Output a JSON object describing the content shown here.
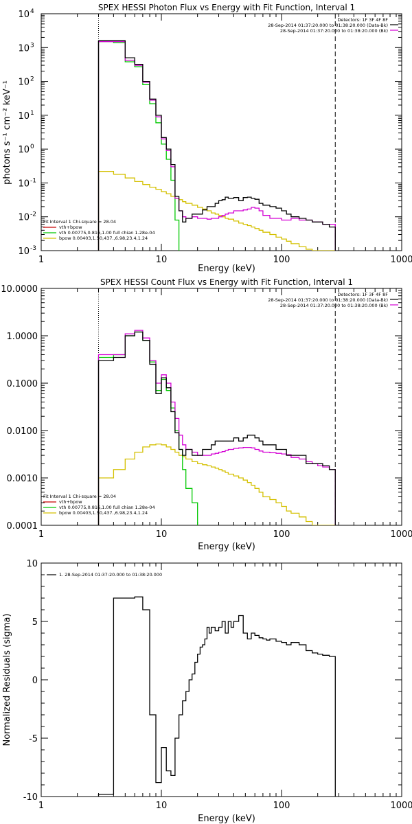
{
  "colors": {
    "axis": "#000000",
    "data": "#000000",
    "vth_bpow": "#d400d4",
    "vth": "#00c800",
    "bpow": "#d4c000",
    "vth_bpow_legend": "#c80000"
  },
  "chart_data": [
    {
      "type": "line",
      "title": "SPEX HESSI Photon Flux vs Energy with Fit Function, Interval 1",
      "xlabel": "Energy (keV)",
      "ylabel": "photons s⁻¹ cm⁻² keV⁻¹",
      "xscale": "log",
      "yscale": "log",
      "xlim": [
        1,
        1000
      ],
      "ylim": [
        0.001,
        10000
      ],
      "x_ticks": [
        {
          "v": 1,
          "label": "1"
        },
        {
          "v": 10,
          "label": "10"
        },
        {
          "v": 100,
          "label": "100"
        },
        {
          "v": 1000,
          "label": "1000"
        }
      ],
      "y_ticks": [
        {
          "v": 0.001,
          "label": "10",
          "exp": "-3"
        },
        {
          "v": 0.01,
          "label": "10",
          "exp": "-2"
        },
        {
          "v": 0.1,
          "label": "10",
          "exp": "-1"
        },
        {
          "v": 1,
          "label": "10",
          "exp": "0"
        },
        {
          "v": 10,
          "label": "10",
          "exp": "1"
        },
        {
          "v": 100,
          "label": "10",
          "exp": "2"
        },
        {
          "v": 1000,
          "label": "10",
          "exp": "3"
        },
        {
          "v": 10000,
          "label": "10",
          "exp": "4"
        }
      ],
      "vlines": [
        {
          "x": 3,
          "style": "dotted"
        },
        {
          "x": 280,
          "style": "dashed"
        }
      ],
      "header_lines": [
        "Detectors: 1F 3F 4F 8F",
        "28-Sep-2014 01:37:20.000 to 01:38:20.000 (Data-Bk)",
        "28-Sep-2014 01:37:20.000 to 01:38:20.000 (Bk)"
      ],
      "legend_lines": [
        "Fit Interval  1     Chi-square = 28.04",
        "vth+bpow",
        "vth 0.00775,0.816,1.00   full chian 1.28e-04",
        "bpow 0.00403,1.50,437.,6.98,23.4,1.24"
      ],
      "series": [
        {
          "name": "data",
          "color_key": "data",
          "x": [
            3,
            4,
            5,
            6,
            7,
            8,
            9,
            10,
            11,
            12,
            13,
            14,
            15,
            16,
            18,
            20,
            22,
            24,
            26,
            28,
            30,
            32,
            34,
            36,
            40,
            44,
            48,
            52,
            56,
            60,
            65,
            70,
            80,
            90,
            100,
            110,
            120,
            140,
            160,
            180,
            200,
            220,
            250,
            280
          ],
          "y": [
            1600,
            1600,
            500,
            320,
            100,
            30,
            10,
            2.2,
            1.0,
            0.35,
            0.04,
            0.015,
            0.007,
            0.009,
            0.012,
            0.012,
            0.016,
            0.02,
            0.02,
            0.025,
            0.03,
            0.032,
            0.038,
            0.035,
            0.037,
            0.03,
            0.037,
            0.038,
            0.035,
            0.033,
            0.025,
            0.022,
            0.02,
            0.018,
            0.015,
            0.012,
            0.01,
            0.009,
            0.008,
            0.007,
            0.007,
            0.006,
            0.005,
            0.005
          ]
        },
        {
          "name": "vth+bpow",
          "color_key": "vth_bpow",
          "x": [
            3,
            4,
            5,
            6,
            7,
            8,
            9,
            10,
            11,
            12,
            13,
            14,
            15,
            16,
            18,
            20,
            22,
            24,
            26,
            28,
            30,
            32,
            34,
            36,
            40,
            44,
            48,
            52,
            56,
            60,
            65,
            70,
            80,
            90,
            100,
            110,
            120,
            140,
            160,
            180,
            200,
            220,
            250,
            280
          ],
          "y": [
            1500,
            1500,
            420,
            300,
            95,
            28,
            9,
            2.0,
            0.9,
            0.3,
            0.035,
            0.015,
            0.01,
            0.009,
            0.01,
            0.009,
            0.009,
            0.0085,
            0.009,
            0.009,
            0.01,
            0.011,
            0.012,
            0.013,
            0.015,
            0.015,
            0.016,
            0.017,
            0.019,
            0.018,
            0.015,
            0.011,
            0.009,
            0.009,
            0.008,
            0.008,
            0.009,
            0.008,
            0.008,
            0.007,
            0.007,
            0.006,
            0.006,
            0.006
          ]
        },
        {
          "name": "vth",
          "color_key": "vth",
          "x": [
            3,
            4,
            5,
            6,
            7,
            8,
            9,
            10,
            11,
            12,
            13,
            14
          ],
          "y": [
            1500,
            1400,
            380,
            270,
            80,
            22,
            6,
            1.4,
            0.5,
            0.12,
            0.008,
            0.0005
          ]
        },
        {
          "name": "bpow",
          "color_key": "bpow",
          "x": [
            3,
            4,
            5,
            6,
            7,
            8,
            9,
            10,
            11,
            12,
            13,
            14,
            15,
            16,
            18,
            20,
            22,
            24,
            26,
            28,
            30,
            32,
            34,
            36,
            40,
            44,
            48,
            52,
            56,
            60,
            65,
            70,
            80,
            90,
            100,
            110,
            120,
            140,
            160,
            180,
            200,
            220,
            250,
            280
          ],
          "y": [
            0.22,
            0.18,
            0.14,
            0.11,
            0.09,
            0.075,
            0.065,
            0.055,
            0.048,
            0.04,
            0.035,
            0.032,
            0.028,
            0.025,
            0.022,
            0.019,
            0.017,
            0.015,
            0.013,
            0.012,
            0.011,
            0.01,
            0.009,
            0.0085,
            0.0075,
            0.0065,
            0.006,
            0.0055,
            0.005,
            0.0045,
            0.004,
            0.0035,
            0.003,
            0.0025,
            0.0022,
            0.0019,
            0.0016,
            0.0013,
            0.0011,
            0.0009,
            0.0008,
            0.0007,
            0.0006,
            0.0005
          ]
        }
      ]
    },
    {
      "type": "line",
      "title": "SPEX HESSI Count Flux vs Energy with Fit Function, Interval 1",
      "xlabel": "Energy (keV)",
      "ylabel": "",
      "xscale": "log",
      "yscale": "log",
      "xlim": [
        1,
        1000
      ],
      "ylim": [
        0.0001,
        10
      ],
      "x_ticks": [
        {
          "v": 1,
          "label": "1"
        },
        {
          "v": 10,
          "label": "10"
        },
        {
          "v": 100,
          "label": "100"
        },
        {
          "v": 1000,
          "label": "1000"
        }
      ],
      "y_ticks": [
        {
          "v": 0.0001,
          "label": "0.0001"
        },
        {
          "v": 0.001,
          "label": "0.0010"
        },
        {
          "v": 0.01,
          "label": "0.0100"
        },
        {
          "v": 0.1,
          "label": "0.1000"
        },
        {
          "v": 1,
          "label": "1.0000"
        },
        {
          "v": 10,
          "label": "10.0000"
        }
      ],
      "vlines": [
        {
          "x": 3,
          "style": "dotted"
        },
        {
          "x": 280,
          "style": "dashed"
        }
      ],
      "header_lines": [
        "Detectors: 1F 3F 4F 8F",
        "28-Sep-2014 01:37:20.000 to 01:38:20.000 (Data-Bk)",
        "28-Sep-2014 01:37:20.000 to 01:38:20.000 (Bk)"
      ],
      "legend_lines": [
        "Fit Interval  1     Chi-square = 28.04",
        "vth+bpow",
        "vth 0.00775,0.816,1.00   full chian 1.28e-04",
        "bpow 0.00403,1.50,437.,6.98,23.4,1.24"
      ],
      "series": [
        {
          "name": "data",
          "color_key": "data",
          "x": [
            3,
            4,
            5,
            6,
            7,
            8,
            9,
            10,
            11,
            12,
            13,
            14,
            15,
            16,
            18,
            20,
            22,
            24,
            26,
            28,
            30,
            32,
            34,
            36,
            40,
            44,
            48,
            52,
            56,
            60,
            65,
            70,
            80,
            90,
            100,
            110,
            120,
            140,
            160,
            180,
            200,
            220,
            250,
            280
          ],
          "y": [
            0.3,
            0.35,
            1.0,
            1.2,
            0.8,
            0.25,
            0.06,
            0.13,
            0.08,
            0.025,
            0.009,
            0.004,
            0.003,
            0.004,
            0.003,
            0.003,
            0.004,
            0.004,
            0.005,
            0.006,
            0.006,
            0.006,
            0.006,
            0.006,
            0.007,
            0.006,
            0.007,
            0.008,
            0.008,
            0.007,
            0.006,
            0.005,
            0.005,
            0.004,
            0.004,
            0.003,
            0.003,
            0.003,
            0.002,
            0.002,
            0.002,
            0.0018,
            0.0015,
            0.0012
          ]
        },
        {
          "name": "vth+bpow",
          "color_key": "vth_bpow",
          "x": [
            3,
            4,
            5,
            6,
            7,
            8,
            9,
            10,
            11,
            12,
            13,
            14,
            15,
            16,
            18,
            20,
            22,
            24,
            26,
            28,
            30,
            32,
            34,
            36,
            40,
            44,
            48,
            52,
            56,
            60,
            65,
            70,
            80,
            90,
            100,
            110,
            120,
            140,
            160,
            180,
            200,
            220,
            250,
            280
          ],
          "y": [
            0.4,
            0.4,
            1.1,
            1.3,
            0.9,
            0.3,
            0.1,
            0.15,
            0.1,
            0.04,
            0.018,
            0.008,
            0.005,
            0.004,
            0.0035,
            0.003,
            0.003,
            0.003,
            0.0032,
            0.0033,
            0.0035,
            0.0036,
            0.0038,
            0.004,
            0.0042,
            0.0043,
            0.0044,
            0.0044,
            0.0043,
            0.004,
            0.0037,
            0.0035,
            0.0034,
            0.0033,
            0.0032,
            0.0031,
            0.0027,
            0.0025,
            0.0022,
            0.002,
            0.0018,
            0.0017,
            0.0015,
            0.0012
          ]
        },
        {
          "name": "vth",
          "color_key": "vth",
          "x": [
            3,
            4,
            5,
            6,
            7,
            8,
            9,
            10,
            11,
            12,
            13,
            14,
            15,
            16,
            18,
            20
          ],
          "y": [
            0.35,
            0.4,
            1.0,
            1.2,
            0.8,
            0.28,
            0.07,
            0.12,
            0.07,
            0.03,
            0.01,
            0.004,
            0.0015,
            0.0006,
            0.0003,
            0.0001
          ]
        },
        {
          "name": "bpow",
          "color_key": "bpow",
          "x": [
            3,
            4,
            5,
            6,
            7,
            8,
            9,
            10,
            11,
            12,
            13,
            14,
            15,
            16,
            18,
            20,
            22,
            24,
            26,
            28,
            30,
            32,
            34,
            36,
            40,
            44,
            48,
            52,
            56,
            60,
            65,
            70,
            80,
            90,
            100,
            110,
            120,
            140,
            160,
            180,
            200,
            220,
            250,
            280
          ],
          "y": [
            0.001,
            0.0015,
            0.0025,
            0.0035,
            0.0045,
            0.005,
            0.0052,
            0.005,
            0.0045,
            0.004,
            0.0035,
            0.003,
            0.0028,
            0.0025,
            0.0022,
            0.002,
            0.0019,
            0.0018,
            0.0017,
            0.0016,
            0.0015,
            0.0014,
            0.0013,
            0.0012,
            0.0011,
            0.001,
            0.0009,
            0.0008,
            0.0007,
            0.0006,
            0.0005,
            0.0004,
            0.00035,
            0.0003,
            0.00025,
            0.0002,
            0.00018,
            0.00015,
            0.00012,
            0.0001,
            0.0001,
            0.0001,
            0.0001,
            0.0001
          ]
        }
      ]
    },
    {
      "type": "line",
      "title": "",
      "xlabel": "Energy (keV)",
      "ylabel": "Normalized Residuals (sigma)",
      "xscale": "log",
      "yscale": "linear",
      "xlim": [
        1,
        1000
      ],
      "ylim": [
        -10,
        10
      ],
      "x_ticks": [
        {
          "v": 1,
          "label": "1"
        },
        {
          "v": 10,
          "label": "10"
        },
        {
          "v": 100,
          "label": "100"
        },
        {
          "v": 1000,
          "label": "1000"
        }
      ],
      "y_ticks": [
        {
          "v": -10,
          "label": "-10"
        },
        {
          "v": -5,
          "label": "-5"
        },
        {
          "v": 0,
          "label": "0"
        },
        {
          "v": 5,
          "label": "5"
        },
        {
          "v": 10,
          "label": "10"
        }
      ],
      "vlines": [],
      "header_lines": [],
      "legend_lines": [
        "1. 28-Sep-2014 01:37:20.000 to 01:38:20.000"
      ],
      "series": [
        {
          "name": "residuals",
          "color_key": "data",
          "x": [
            3,
            4,
            5,
            6,
            7,
            8,
            9,
            10,
            11,
            12,
            13,
            14,
            15,
            16,
            17,
            18,
            19,
            20,
            21,
            22,
            23,
            24,
            25,
            26,
            28,
            30,
            32,
            34,
            36,
            38,
            40,
            44,
            48,
            52,
            56,
            60,
            65,
            70,
            75,
            80,
            90,
            100,
            110,
            120,
            140,
            160,
            180,
            200,
            220,
            250,
            280
          ],
          "y": [
            -9.8,
            7.0,
            7.0,
            7.1,
            6.0,
            -3.0,
            -8.8,
            -5.8,
            -7.8,
            -8.2,
            -5.0,
            -3.0,
            -1.8,
            -1.0,
            0,
            0.5,
            1.5,
            2.2,
            2.8,
            3.0,
            3.5,
            4.5,
            4.0,
            4.5,
            4.2,
            4.5,
            5.0,
            4.0,
            5.0,
            4.5,
            5.0,
            5.5,
            4.0,
            3.5,
            4.0,
            3.8,
            3.6,
            3.5,
            3.4,
            3.5,
            3.3,
            3.2,
            3.0,
            3.2,
            3.0,
            2.5,
            2.3,
            2.2,
            2.1,
            2.0,
            2.0
          ]
        }
      ]
    }
  ]
}
